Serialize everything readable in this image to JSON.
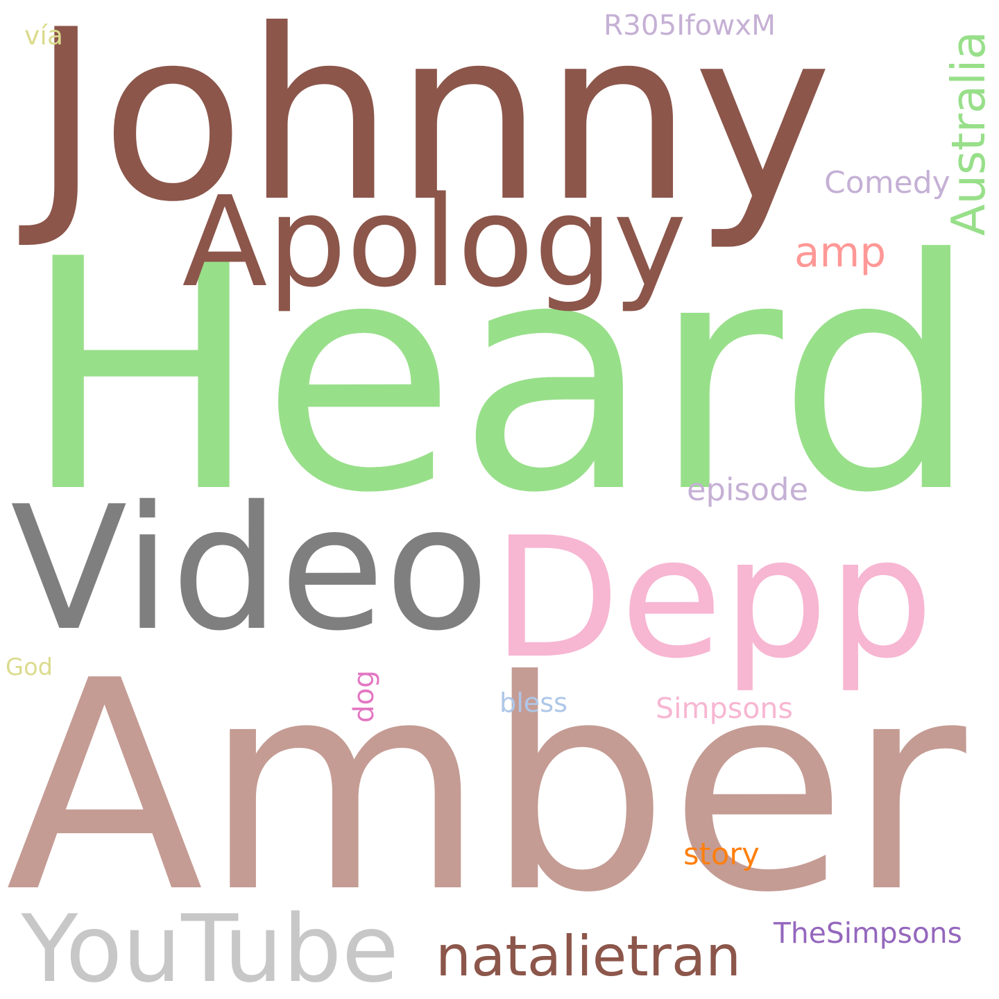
{
  "words": [
    {
      "id": "heard",
      "text": "Heard",
      "color": "#98df8a"
    },
    {
      "id": "amber",
      "text": "Amber",
      "color": "#c49c94"
    },
    {
      "id": "johnny",
      "text": "Johnny",
      "color": "#8c564b"
    },
    {
      "id": "depp",
      "text": "Depp",
      "color": "#f7b6d2"
    },
    {
      "id": "video",
      "text": "Video",
      "color": "#7f7f7f"
    },
    {
      "id": "apology",
      "text": "Apology",
      "color": "#8c564b"
    },
    {
      "id": "youtube",
      "text": "YouTube",
      "color": "#c7c7c7"
    },
    {
      "id": "natalietran",
      "text": "natalietran",
      "color": "#8c564b"
    },
    {
      "id": "australia",
      "text": "Australia",
      "color": "#98df8a"
    },
    {
      "id": "amp",
      "text": "amp",
      "color": "#ff9896"
    },
    {
      "id": "comedy",
      "text": "Comedy",
      "color": "#c5b0d5"
    },
    {
      "id": "thesimpsons",
      "text": "TheSimpsons",
      "color": "#9467bd"
    },
    {
      "id": "simpsons",
      "text": "Simpsons",
      "color": "#f7b6d2"
    },
    {
      "id": "r305ifowxm",
      "text": "R305IfowxM",
      "color": "#c5b0d5"
    },
    {
      "id": "episode",
      "text": "episode",
      "color": "#c5b0d5"
    },
    {
      "id": "story",
      "text": "story",
      "color": "#ff7f0e"
    },
    {
      "id": "dog",
      "text": "dog",
      "color": "#e377c2"
    },
    {
      "id": "bless",
      "text": "bless",
      "color": "#aec7e8"
    },
    {
      "id": "god",
      "text": "God",
      "color": "#dbdb8d"
    },
    {
      "id": "via",
      "text": "vía",
      "color": "#dbdb8d"
    }
  ]
}
